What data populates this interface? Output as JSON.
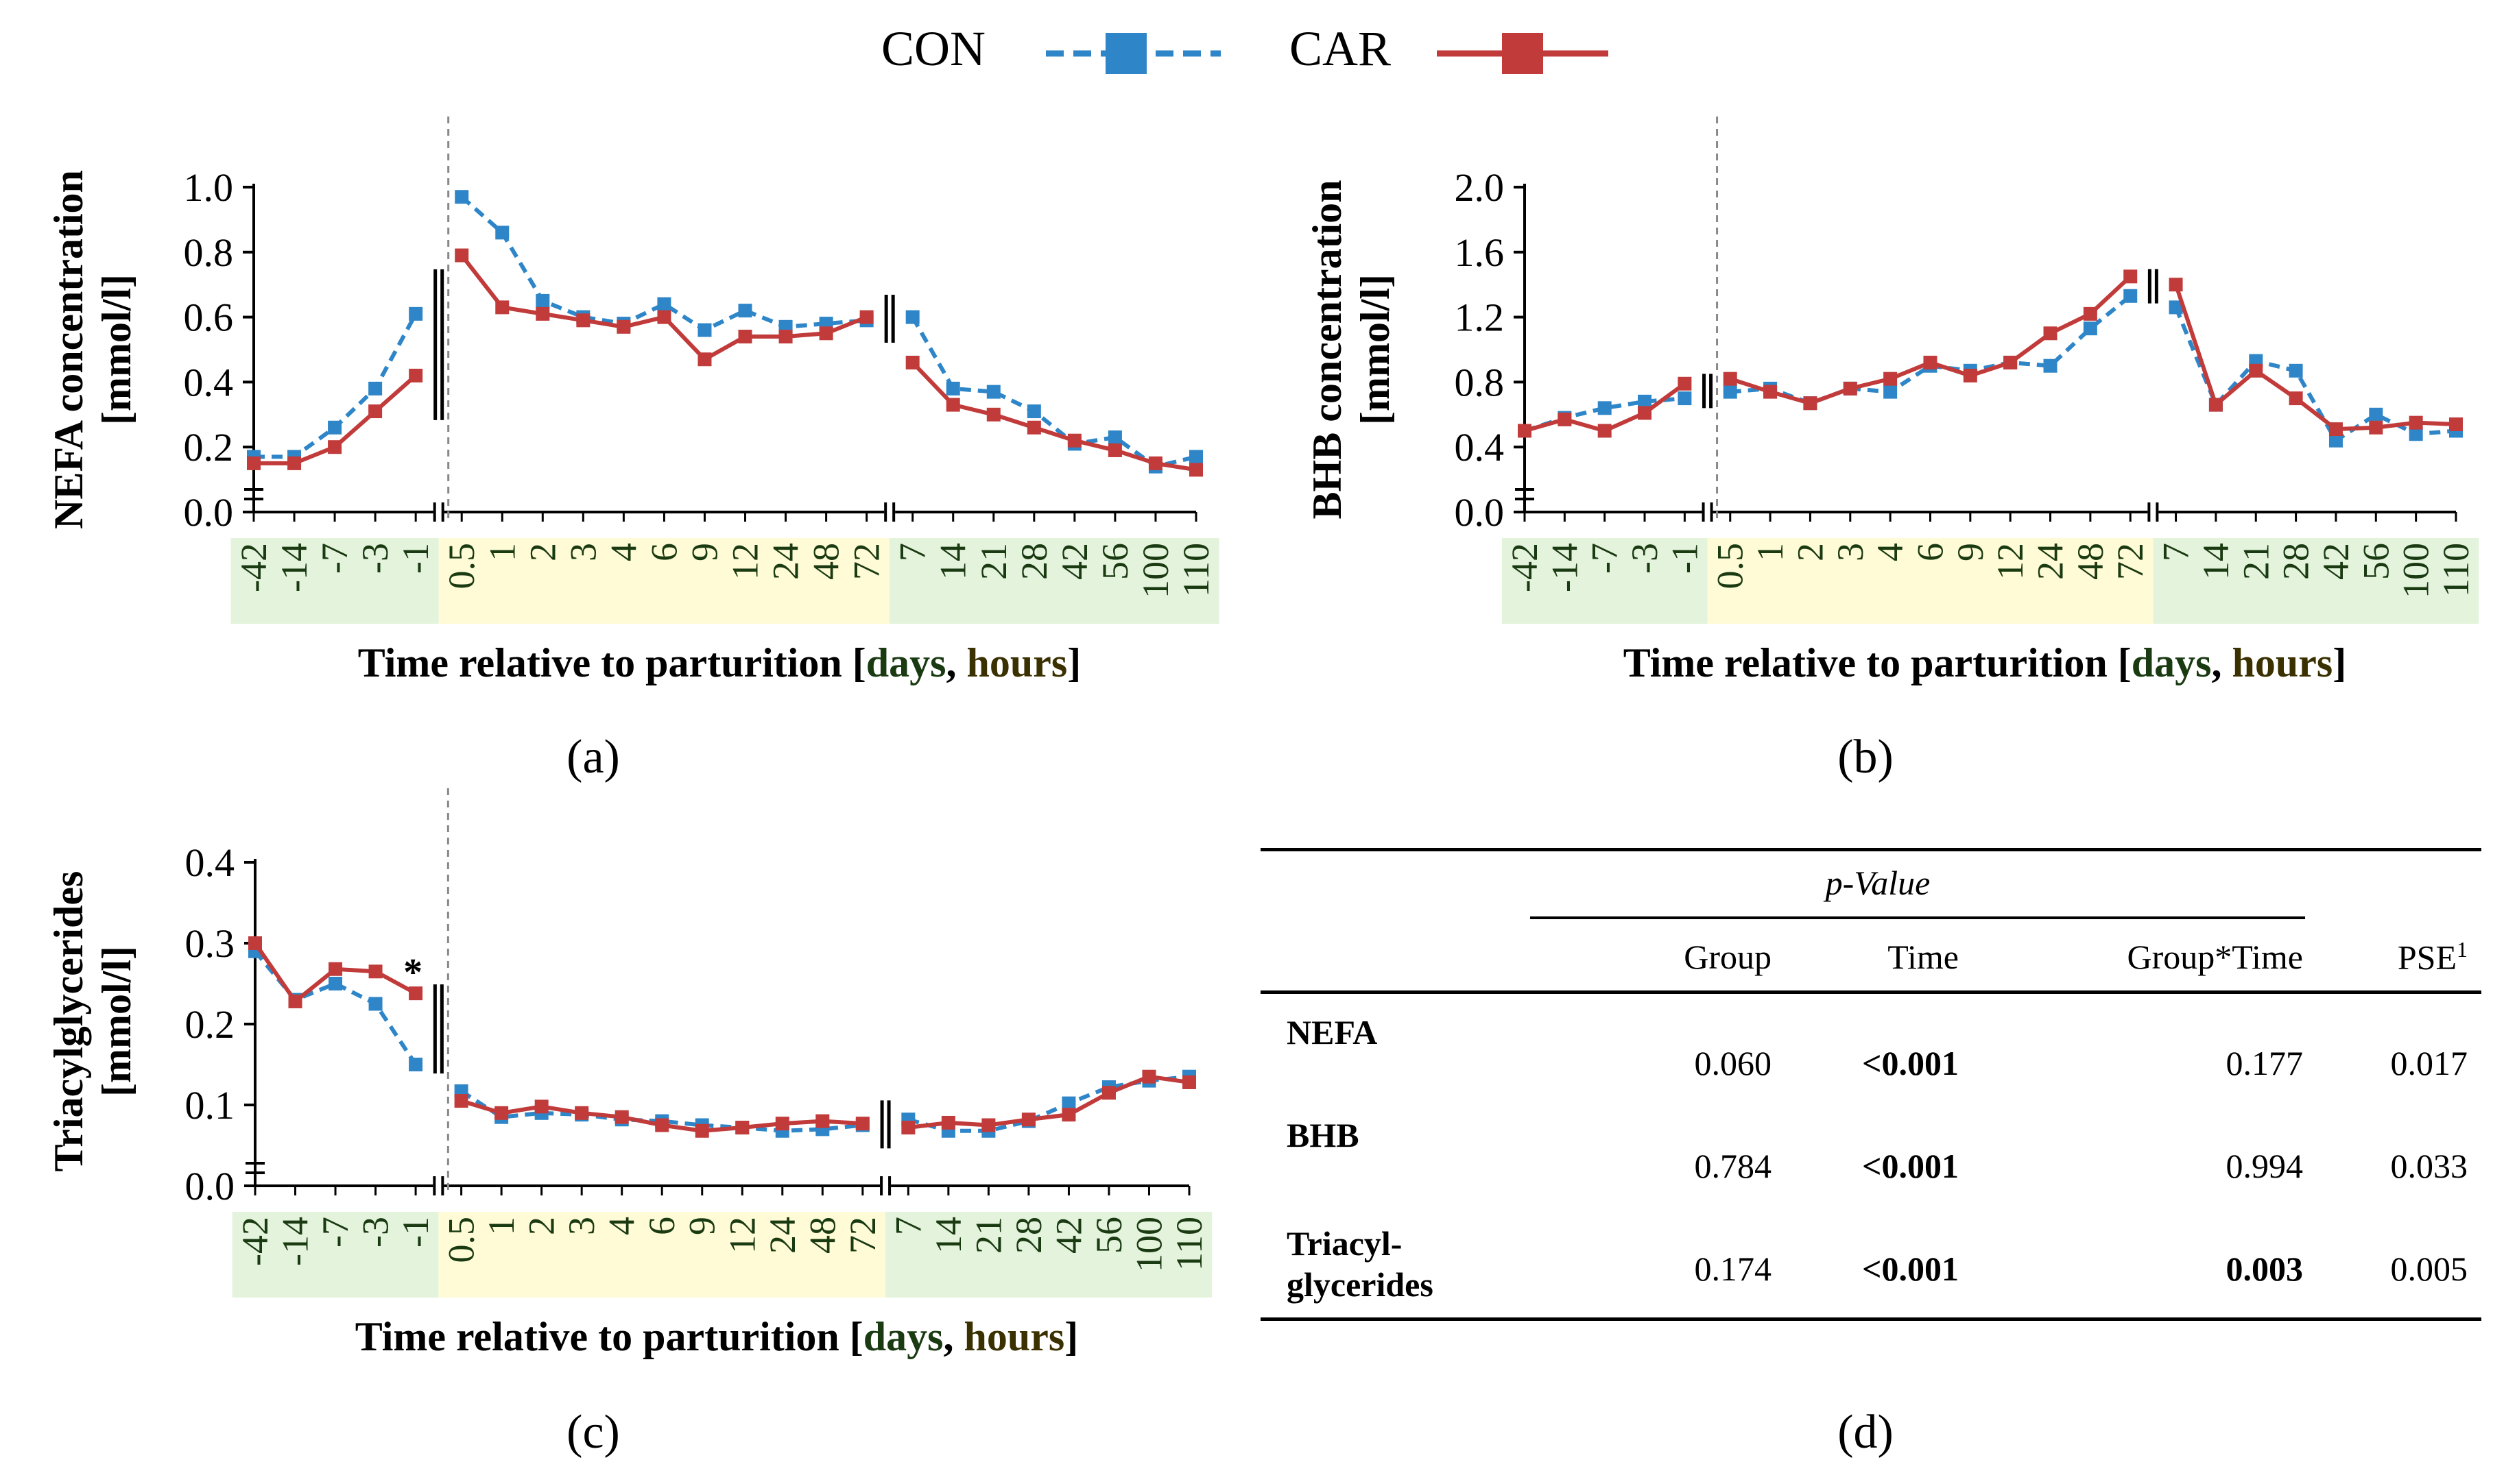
{
  "legend": {
    "series": [
      {
        "name": "CON",
        "color": "#2E86C8",
        "dashed": true
      },
      {
        "name": "CAR",
        "color": "#C23B3B",
        "dashed": false
      }
    ]
  },
  "colors": {
    "con": "#2E86C8",
    "car": "#C23B3B",
    "days_bg": "#E3F3DC",
    "hours_bg": "#FFFBD6",
    "tick_text": "#1A3A12"
  },
  "categories": [
    "-42",
    "-14",
    "-7",
    "-3",
    "-1",
    "0.5",
    "1",
    "2",
    "3",
    "4",
    "6",
    "9",
    "12",
    "24",
    "48",
    "72",
    "7",
    "14",
    "21",
    "28",
    "42",
    "56",
    "100",
    "110"
  ],
  "category_groups": {
    "days_pre": [
      0,
      4
    ],
    "hours": [
      5,
      15
    ],
    "days_post": [
      16,
      23
    ]
  },
  "chart_data": [
    {
      "panel": "a",
      "type": "line",
      "ylabel_lines": [
        "NEFA concentration",
        "[mmol/l]"
      ],
      "xlabel": {
        "prefix": "Time relative to parturition [",
        "days": "days",
        "sep": ", ",
        "hours": "hours",
        "suffix": "]"
      },
      "yticks": [
        "0.0",
        "0.2",
        "0.4",
        "0.6",
        "0.8",
        "1.0"
      ],
      "ylim": [
        0,
        1.0
      ],
      "series": [
        {
          "name": "CON",
          "values": [
            0.17,
            0.17,
            0.26,
            0.38,
            0.61,
            0.97,
            0.86,
            0.65,
            0.6,
            0.58,
            0.64,
            0.56,
            0.62,
            0.57,
            0.58,
            0.59,
            0.6,
            0.38,
            0.37,
            0.31,
            0.21,
            0.23,
            0.14,
            0.17
          ]
        },
        {
          "name": "CAR",
          "values": [
            0.15,
            0.15,
            0.2,
            0.31,
            0.42,
            0.79,
            0.63,
            0.61,
            0.59,
            0.57,
            0.6,
            0.47,
            0.54,
            0.54,
            0.55,
            0.6,
            0.46,
            0.33,
            0.3,
            0.26,
            0.22,
            0.19,
            0.15,
            0.13
          ]
        }
      ],
      "annotations": []
    },
    {
      "panel": "b",
      "type": "line",
      "ylabel_lines": [
        "BHB concentration",
        "[mmol/l]"
      ],
      "xlabel": {
        "prefix": "Time relative to parturition [",
        "days": "days",
        "sep": ", ",
        "hours": "hours",
        "suffix": "]"
      },
      "yticks": [
        "0.0",
        "0.4",
        "0.8",
        "1.2",
        "1.6",
        "2.0"
      ],
      "ylim": [
        0,
        2.0
      ],
      "series": [
        {
          "name": "CON",
          "values": [
            0.5,
            0.58,
            0.64,
            0.68,
            0.7,
            0.74,
            0.76,
            0.67,
            0.76,
            0.74,
            0.9,
            0.87,
            0.92,
            0.9,
            1.13,
            1.33,
            1.26,
            0.66,
            0.93,
            0.87,
            0.44,
            0.6,
            0.48,
            0.5
          ]
        },
        {
          "name": "CAR",
          "values": [
            0.5,
            0.57,
            0.5,
            0.61,
            0.79,
            0.82,
            0.74,
            0.67,
            0.76,
            0.82,
            0.92,
            0.84,
            0.92,
            1.1,
            1.22,
            1.45,
            1.4,
            0.66,
            0.87,
            0.7,
            0.51,
            0.52,
            0.55,
            0.54
          ]
        }
      ],
      "annotations": []
    },
    {
      "panel": "c",
      "type": "line",
      "ylabel_lines": [
        "Triacylglycerides",
        "[mmol/l]"
      ],
      "xlabel": {
        "prefix": "Time relative to parturition [",
        "days": "days",
        "sep": ", ",
        "hours": "hours",
        "suffix": "]"
      },
      "yticks": [
        "0.0",
        "0.1",
        "0.2",
        "0.3",
        "0.4"
      ],
      "ylim": [
        0,
        0.4
      ],
      "series": [
        {
          "name": "CON",
          "values": [
            0.29,
            0.23,
            0.25,
            0.225,
            0.15,
            0.117,
            0.085,
            0.09,
            0.088,
            0.082,
            0.08,
            0.075,
            0.072,
            0.068,
            0.07,
            0.075,
            0.082,
            0.068,
            0.068,
            0.08,
            0.102,
            0.122,
            0.13,
            0.135
          ]
        },
        {
          "name": "CAR",
          "values": [
            0.3,
            0.228,
            0.268,
            0.265,
            0.238,
            0.105,
            0.09,
            0.098,
            0.09,
            0.085,
            0.075,
            0.068,
            0.072,
            0.077,
            0.08,
            0.077,
            0.072,
            0.078,
            0.075,
            0.082,
            0.088,
            0.115,
            0.135,
            0.128
          ]
        }
      ],
      "annotations": [
        {
          "text": "*",
          "index": 4
        }
      ]
    }
  ],
  "panel_labels": {
    "a": "(a)",
    "b": "(b)",
    "c": "(c)",
    "d": "(d)"
  },
  "table": {
    "group_header": "p-Value",
    "columns": [
      "Group",
      "Time",
      "Group*Time"
    ],
    "pse_label": "PSE",
    "pse_sup": "1",
    "rows": [
      {
        "label1": "NEFA",
        "label2": "",
        "group": "0.060",
        "time": "<0.001",
        "gxt": "0.177",
        "pse": "0.017",
        "time_bold": true,
        "gxt_bold": false
      },
      {
        "label1": "BHB",
        "label2": "",
        "group": "0.784",
        "time": "<0.001",
        "gxt": "0.994",
        "pse": "0.033",
        "time_bold": true,
        "gxt_bold": false
      },
      {
        "label1": "Triacyl-",
        "label2": "glycerides",
        "group": "0.174",
        "time": "<0.001",
        "gxt": "0.003",
        "pse": "0.005",
        "time_bold": true,
        "gxt_bold": true
      }
    ]
  }
}
